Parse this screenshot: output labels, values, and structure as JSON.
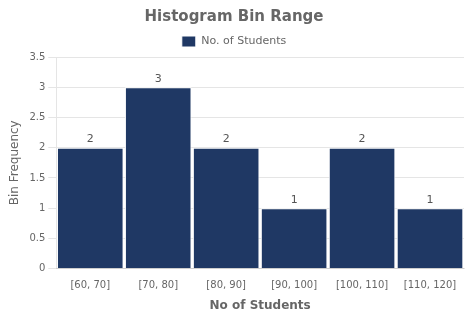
{
  "chart_data": {
    "type": "bar",
    "title": "Histogram Bin Range",
    "x_label": "No of Students",
    "y_label": "Bin Frequency",
    "categories": [
      "[60, 70]",
      "[70, 80]",
      "[80, 90]",
      "[90, 100]",
      "[100, 110]",
      "[110, 120]"
    ],
    "series": [
      {
        "name": "No. of Students",
        "color": "#1F3864",
        "values": [
          2,
          3,
          2,
          1,
          2,
          1
        ]
      }
    ],
    "ylim": [
      0,
      3.5
    ],
    "yticks": [
      0,
      0.5,
      1,
      1.5,
      2,
      2.5,
      3,
      3.5
    ],
    "grid": true,
    "legend": "top",
    "data_labels": true
  }
}
